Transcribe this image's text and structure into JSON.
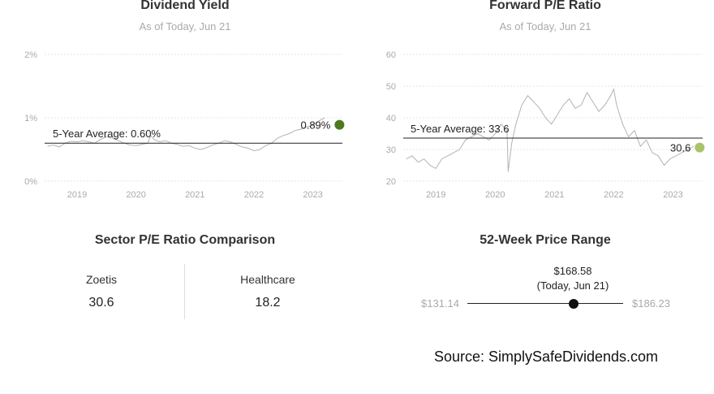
{
  "chart_data": [
    {
      "type": "line",
      "title": "Dividend Yield",
      "subtitle": "As of Today, Jun 21",
      "x_ticks": [
        "2019",
        "2020",
        "2021",
        "2022",
        "2023"
      ],
      "y_ticks": [
        "0%",
        "1%",
        "2%"
      ],
      "ylim": [
        0,
        2
      ],
      "xlim": [
        2018.45,
        2023.5
      ],
      "grid": true,
      "average": {
        "label": "5-Year Average: 0.60%",
        "value": 0.6
      },
      "current": {
        "label": "0.89%",
        "value": 0.89,
        "x": 2023.45
      },
      "series": [
        {
          "x": [
            2018.5,
            2018.6,
            2018.7,
            2018.8,
            2018.9,
            2019.0,
            2019.1,
            2019.2,
            2019.3,
            2019.4,
            2019.5,
            2019.6,
            2019.7,
            2019.8,
            2019.9,
            2020.0,
            2020.1,
            2020.2,
            2020.25,
            2020.3,
            2020.4,
            2020.5,
            2020.6,
            2020.7,
            2020.8,
            2020.9,
            2021.0,
            2021.1,
            2021.2,
            2021.3,
            2021.4,
            2021.5,
            2021.6,
            2021.7,
            2021.8,
            2021.9,
            2022.0,
            2022.1,
            2022.2,
            2022.3,
            2022.4,
            2022.5,
            2022.6,
            2022.7,
            2022.8,
            2022.9,
            2023.0,
            2023.1,
            2023.2
          ],
          "values": [
            0.55,
            0.57,
            0.54,
            0.6,
            0.63,
            0.62,
            0.64,
            0.62,
            0.6,
            0.66,
            0.7,
            0.68,
            0.64,
            0.6,
            0.57,
            0.56,
            0.58,
            0.6,
            0.72,
            0.66,
            0.62,
            0.64,
            0.6,
            0.58,
            0.55,
            0.56,
            0.52,
            0.5,
            0.53,
            0.57,
            0.6,
            0.64,
            0.62,
            0.58,
            0.54,
            0.52,
            0.48,
            0.5,
            0.56,
            0.6,
            0.68,
            0.72,
            0.75,
            0.8,
            0.82,
            0.86,
            0.88,
            0.95,
            1.0
          ]
        }
      ]
    },
    {
      "type": "line",
      "title": "Forward P/E Ratio",
      "subtitle": "As of Today, Jun 21",
      "x_ticks": [
        "2019",
        "2020",
        "2021",
        "2022",
        "2023"
      ],
      "y_ticks": [
        "20",
        "30",
        "40",
        "50",
        "60"
      ],
      "ylim": [
        20,
        60
      ],
      "xlim": [
        2018.45,
        2023.5
      ],
      "grid": true,
      "average": {
        "label": "5-Year Average: 33.6",
        "value": 33.6
      },
      "current": {
        "label": "30.6",
        "value": 30.6,
        "x": 2023.45
      },
      "series": [
        {
          "x": [
            2018.5,
            2018.6,
            2018.7,
            2018.8,
            2018.9,
            2019.0,
            2019.1,
            2019.2,
            2019.3,
            2019.4,
            2019.5,
            2019.6,
            2019.7,
            2019.8,
            2019.9,
            2020.0,
            2020.1,
            2020.2,
            2020.22,
            2020.28,
            2020.35,
            2020.45,
            2020.55,
            2020.65,
            2020.75,
            2020.85,
            2020.95,
            2021.05,
            2021.15,
            2021.25,
            2021.35,
            2021.45,
            2021.55,
            2021.65,
            2021.75,
            2021.85,
            2021.95,
            2022.0,
            2022.05,
            2022.15,
            2022.25,
            2022.35,
            2022.45,
            2022.55,
            2022.65,
            2022.75,
            2022.85,
            2022.95,
            2023.05,
            2023.15,
            2023.25,
            2023.35
          ],
          "values": [
            27,
            28,
            26,
            27,
            25,
            24,
            27,
            28,
            29,
            30,
            33,
            34,
            35,
            34,
            33,
            35,
            38,
            36,
            23,
            32,
            38,
            44,
            47,
            45,
            43,
            40,
            38,
            41,
            44,
            46,
            43,
            44,
            48,
            45,
            42,
            44,
            47,
            49,
            44,
            38,
            34,
            36,
            31,
            33,
            29,
            28,
            25,
            27,
            28,
            29,
            30,
            31
          ]
        }
      ]
    }
  ],
  "sector": {
    "title": "Sector P/E Ratio Comparison",
    "items": [
      {
        "name": "Zoetis",
        "value": "30.6"
      },
      {
        "name": "Healthcare",
        "value": "18.2"
      }
    ]
  },
  "price_range": {
    "title": "52-Week Price Range",
    "current_price": "$168.58",
    "current_date": "(Today, Jun 21)",
    "low_label": "$131.14",
    "high_label": "$186.23",
    "low": 131.14,
    "high": 186.23,
    "current": 168.58
  },
  "source": "Source: SimplySafeDividends.com",
  "colors": {
    "yield_dot": "#4c7a1c",
    "pe_dot": "#a9c36a",
    "series_line": "#b3b3b3",
    "average_line": "#222222",
    "grid": "#e6e6e6"
  }
}
